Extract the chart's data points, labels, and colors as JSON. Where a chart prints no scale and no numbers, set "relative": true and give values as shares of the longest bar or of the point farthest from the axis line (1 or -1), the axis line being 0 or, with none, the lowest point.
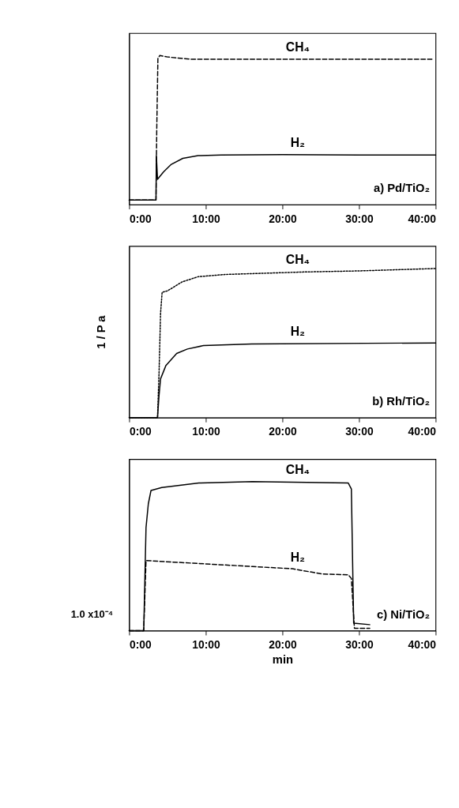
{
  "chart_data": [
    {
      "type": "line",
      "relative": true,
      "xlim": [
        0,
        40
      ],
      "xticks": [
        {
          "value": 0,
          "label": "0:00"
        },
        {
          "value": 10,
          "label": "10:00"
        },
        {
          "value": 20,
          "label": "20:00"
        },
        {
          "value": 30,
          "label": "30:00"
        },
        {
          "value": 40,
          "label": "40:00"
        }
      ],
      "annotations": [
        "a) Pd/TiO₂"
      ],
      "series": [
        {
          "name": "CH₄",
          "color": "#000000",
          "line_style": "dashed",
          "x": [
            0,
            3.5,
            3.6,
            3.75,
            4.0,
            5,
            8,
            20,
            30,
            39.6
          ],
          "values": [
            0.03,
            0.03,
            0.5,
            0.98,
            1.0,
            0.99,
            0.975,
            0.975,
            0.975,
            0.975
          ]
        },
        {
          "name": "H₂",
          "color": "#000000",
          "line_style": "solid",
          "x": [
            0,
            3.5,
            3.55,
            3.7,
            4.5,
            5.5,
            7,
            9,
            12,
            20,
            30,
            40
          ],
          "values": [
            0.03,
            0.03,
            0.33,
            0.17,
            0.22,
            0.27,
            0.31,
            0.328,
            0.333,
            0.335,
            0.333,
            0.333
          ]
        }
      ]
    },
    {
      "type": "line",
      "relative": true,
      "xlim": [
        0,
        40
      ],
      "xticks": [
        {
          "value": 0,
          "label": "0:00"
        },
        {
          "value": 10,
          "label": "10:00"
        },
        {
          "value": 20,
          "label": "20:00"
        },
        {
          "value": 30,
          "label": "30:00"
        },
        {
          "value": 40,
          "label": "40:00"
        }
      ],
      "ylabel": "1 / P a",
      "annotations": [
        "b) Rh/TiO₂"
      ],
      "series": [
        {
          "name": "CH₄",
          "color": "#000000",
          "line_style": "dotted",
          "x": [
            0,
            3.7,
            3.9,
            4.1,
            4.3,
            5,
            6.9,
            9,
            12.5,
            23,
            30,
            40
          ],
          "values": [
            0,
            0,
            0.3,
            0.7,
            0.84,
            0.85,
            0.91,
            0.945,
            0.96,
            0.977,
            0.984,
            1.0
          ]
        },
        {
          "name": "H₂",
          "color": "#000000",
          "line_style": "solid",
          "x": [
            0,
            3.7,
            3.9,
            4.1,
            4.8,
            6.2,
            7.6,
            9.7,
            16,
            40
          ],
          "values": [
            0,
            0,
            0.15,
            0.26,
            0.35,
            0.43,
            0.46,
            0.483,
            0.494,
            0.501
          ]
        }
      ]
    },
    {
      "type": "line",
      "relative": true,
      "xlim": [
        0,
        40
      ],
      "xticks": [
        {
          "value": 0,
          "label": "0:00"
        },
        {
          "value": 10,
          "label": "10:00"
        },
        {
          "value": 20,
          "label": "20:00"
        },
        {
          "value": 30,
          "label": "30:00"
        },
        {
          "value": 40,
          "label": "40:00"
        }
      ],
      "xlabel": "min",
      "annotations": [
        "c) Ni/TiO₂",
        "1.0 x10⁻⁴"
      ],
      "series": [
        {
          "name": "CH₄",
          "color": "#000000",
          "line_style": "solid",
          "x": [
            0,
            1.9,
            2.2,
            2.5,
            2.85,
            4.25,
            9.1,
            16.1,
            28.6,
            29.0,
            29.3,
            31.4
          ],
          "values": [
            0,
            0,
            0.69,
            0.85,
            0.94,
            0.96,
            0.99,
            1.0,
            0.99,
            0.95,
            0.05,
            0.04
          ]
        },
        {
          "name": "H₂",
          "color": "#000000",
          "line_style": "dashed",
          "x": [
            0,
            1.9,
            2.2,
            9.1,
            16.1,
            21.3,
            25.2,
            28.6,
            29.0,
            29.4,
            31.4
          ],
          "values": [
            0,
            0,
            0.47,
            0.45,
            0.43,
            0.415,
            0.38,
            0.374,
            0.35,
            0.016,
            0.016
          ]
        }
      ]
    }
  ]
}
